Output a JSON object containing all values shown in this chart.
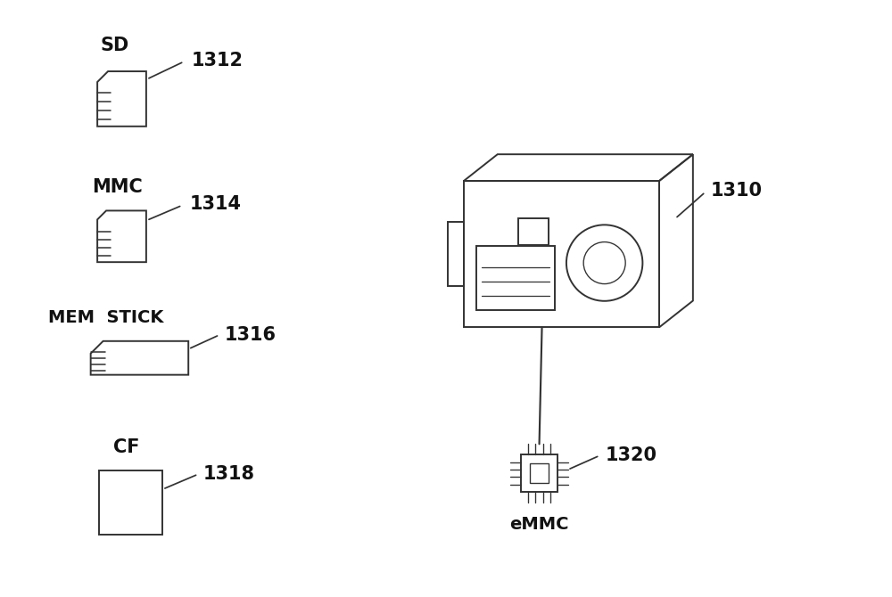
{
  "bg_color": "#ffffff",
  "line_color": "#333333",
  "text_color": "#111111",
  "labels": {
    "sd_label": "SD",
    "sd_num": "1312",
    "mmc_label": "MMC",
    "mmc_num": "1314",
    "mem_stick_label": "MEM  STICK",
    "mem_stick_num": "1316",
    "cf_label": "CF",
    "cf_num": "1318",
    "camera_num": "1310",
    "emmc_label": "eMMC",
    "emmc_num": "1320"
  }
}
